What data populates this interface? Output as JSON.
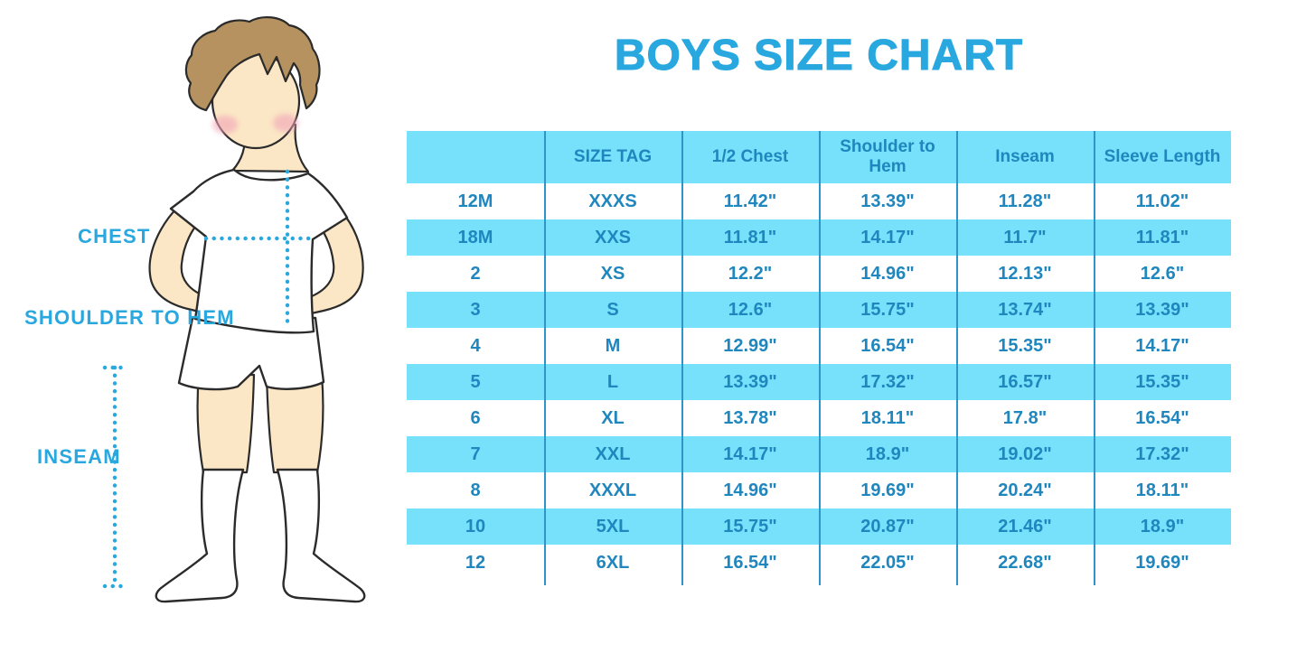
{
  "title": "BOYS SIZE CHART",
  "colors": {
    "accent": "#29A8E0",
    "table_text": "#1F86BE",
    "row_stripe": "#77E1FB",
    "column_line": "#2D96C8",
    "skin": "#FBE7C5",
    "hair": "#B5925F",
    "blush": "#F2A4B8",
    "outline": "#2b2b2b"
  },
  "figure": {
    "labels": {
      "chest": "CHEST",
      "shoulder_to_hem": "SHOULDER TO HEM",
      "inseam": "INSEAM"
    }
  },
  "table": {
    "headers": [
      "",
      "SIZE TAG",
      "1/2 Chest",
      "Shoulder to Hem",
      "Inseam",
      "Sleeve Length"
    ],
    "rows": [
      {
        "cells": [
          "12M",
          "XXXS",
          "11.42\"",
          "13.39\"",
          "11.28\"",
          "11.02\""
        ]
      },
      {
        "cells": [
          "18M",
          "XXS",
          "11.81\"",
          "14.17\"",
          "11.7\"",
          "11.81\""
        ]
      },
      {
        "cells": [
          "2",
          "XS",
          "12.2\"",
          "14.96\"",
          "12.13\"",
          "12.6\""
        ]
      },
      {
        "cells": [
          "3",
          "S",
          "12.6\"",
          "15.75\"",
          "13.74\"",
          "13.39\""
        ]
      },
      {
        "cells": [
          "4",
          "M",
          "12.99\"",
          "16.54\"",
          "15.35\"",
          "14.17\""
        ]
      },
      {
        "cells": [
          "5",
          "L",
          "13.39\"",
          "17.32\"",
          "16.57\"",
          "15.35\""
        ]
      },
      {
        "cells": [
          "6",
          "XL",
          "13.78\"",
          "18.11\"",
          "17.8\"",
          "16.54\""
        ]
      },
      {
        "cells": [
          "7",
          "XXL",
          "14.17\"",
          "18.9\"",
          "19.02\"",
          "17.32\""
        ]
      },
      {
        "cells": [
          "8",
          "XXXL",
          "14.96\"",
          "19.69\"",
          "20.24\"",
          "18.11\""
        ]
      },
      {
        "cells": [
          "10",
          "5XL",
          "15.75\"",
          "20.87\"",
          "21.46\"",
          "18.9\""
        ]
      },
      {
        "cells": [
          "12",
          "6XL",
          "16.54\"",
          "22.05\"",
          "22.68\"",
          "19.69\""
        ]
      }
    ]
  },
  "chart_data": {
    "type": "table",
    "title": "BOYS SIZE CHART",
    "columns": [
      "",
      "SIZE TAG",
      "1/2 Chest",
      "Shoulder to Hem",
      "Inseam",
      "Sleeve Length"
    ],
    "rows": [
      [
        "12M",
        "XXXS",
        "11.42\"",
        "13.39\"",
        "11.28\"",
        "11.02\""
      ],
      [
        "18M",
        "XXS",
        "11.81\"",
        "14.17\"",
        "11.7\"",
        "11.81\""
      ],
      [
        "2",
        "XS",
        "12.2\"",
        "14.96\"",
        "12.13\"",
        "12.6\""
      ],
      [
        "3",
        "S",
        "12.6\"",
        "15.75\"",
        "13.74\"",
        "13.39\""
      ],
      [
        "4",
        "M",
        "12.99\"",
        "16.54\"",
        "15.35\"",
        "14.17\""
      ],
      [
        "5",
        "L",
        "13.39\"",
        "17.32\"",
        "16.57\"",
        "15.35\""
      ],
      [
        "6",
        "XL",
        "13.78\"",
        "18.11\"",
        "17.8\"",
        "16.54\""
      ],
      [
        "7",
        "XXL",
        "14.17\"",
        "18.9\"",
        "19.02\"",
        "17.32\""
      ],
      [
        "8",
        "XXXL",
        "14.96\"",
        "19.69\"",
        "20.24\"",
        "18.11\""
      ],
      [
        "10",
        "5XL",
        "15.75\"",
        "20.87\"",
        "21.46\"",
        "18.9\""
      ],
      [
        "12",
        "6XL",
        "16.54\"",
        "22.05\"",
        "22.68\"",
        "19.69\""
      ]
    ],
    "layout_hints": {
      "striped_rows": true,
      "stripe_color": "#77E1FB",
      "first_header_cell_empty": true
    }
  }
}
